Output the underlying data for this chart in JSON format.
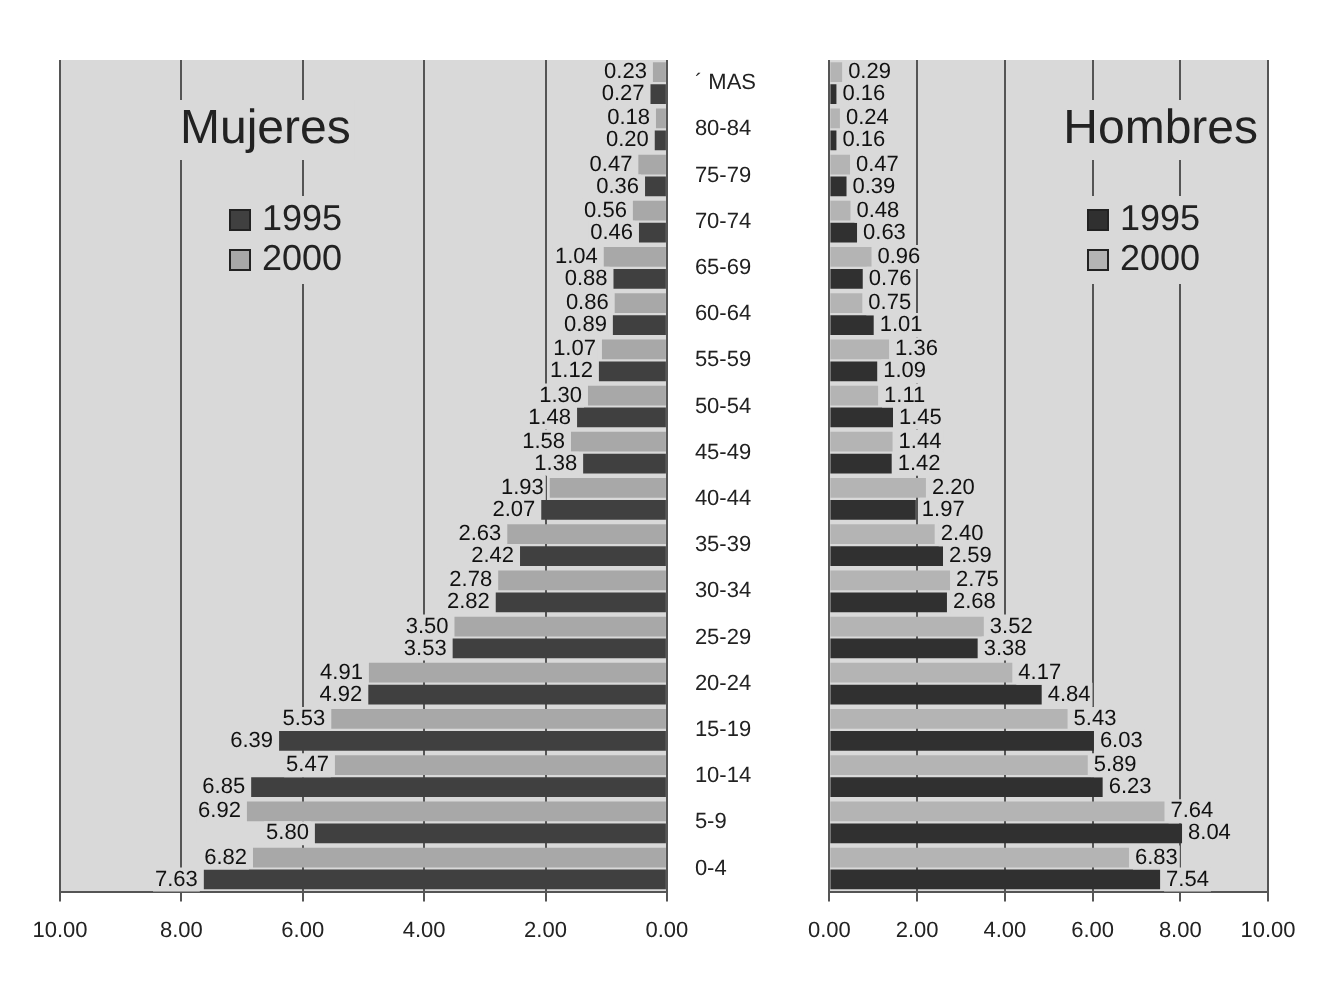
{
  "chart_data": [
    {
      "type": "bar",
      "orientation": "horizontal",
      "title": "Mujeres",
      "categories": [
        "´ MAS",
        "80-84",
        "75-79",
        "70-74",
        "65-69",
        "60-64",
        "55-59",
        "50-54",
        "45-49",
        "40-44",
        "35-39",
        "30-34",
        "25-29",
        "20-24",
        "15-19",
        "10-14",
        "5-9",
        "0-4"
      ],
      "series": [
        {
          "name": "2000",
          "color": "#a8a8a8",
          "values": [
            0.23,
            0.18,
            0.47,
            0.56,
            1.04,
            0.86,
            1.07,
            1.3,
            1.58,
            1.93,
            2.63,
            2.78,
            3.5,
            4.91,
            5.53,
            5.47,
            6.92,
            6.82
          ],
          "value_labels": [
            "0.23",
            "0.18",
            "0.47",
            "0.56",
            "1.04",
            "0.86",
            "1.07",
            "1.30",
            "1.58",
            "1.93",
            "2.63",
            "2.78",
            "3.50",
            "4.91",
            "5.53",
            "5.47",
            "6.92",
            "6.82"
          ]
        },
        {
          "name": "1995",
          "color": "#404040",
          "values": [
            0.27,
            0.2,
            0.36,
            0.46,
            0.88,
            0.89,
            1.12,
            1.48,
            1.38,
            2.07,
            2.42,
            2.82,
            3.53,
            4.92,
            6.39,
            6.85,
            5.8,
            7.63
          ],
          "value_labels": [
            "0.27",
            "0.20",
            "0.36",
            "0.46",
            "0.88",
            "0.89",
            "1.12",
            "1.48",
            "1.38",
            "2.07",
            "2.42",
            "2.82",
            "3.53",
            "4.92",
            "6.39",
            "6.85",
            "5.80",
            "7.63"
          ]
        }
      ],
      "xlim": [
        10,
        0
      ],
      "xticks": [
        {
          "value": 10,
          "label": "10.00"
        },
        {
          "value": 8,
          "label": "8.00"
        },
        {
          "value": 6,
          "label": "6.00"
        },
        {
          "value": 4,
          "label": "4.00"
        },
        {
          "value": 2,
          "label": "2.00"
        },
        {
          "value": 0,
          "label": "0.00"
        }
      ],
      "grid": "x",
      "legend": "top left"
    },
    {
      "type": "bar",
      "orientation": "horizontal",
      "title": "Hombres",
      "categories": [
        null,
        null,
        null,
        null,
        null,
        null,
        null,
        null,
        null,
        null,
        null,
        null,
        null,
        null,
        null,
        null,
        null,
        null
      ],
      "series": [
        {
          "name": "2000",
          "color": "#b4b4b4",
          "values": [
            0.29,
            0.24,
            0.47,
            0.48,
            0.96,
            0.75,
            1.36,
            1.11,
            1.44,
            2.2,
            2.4,
            2.75,
            3.52,
            4.17,
            5.43,
            5.89,
            7.64,
            6.83
          ],
          "value_labels": [
            "0.29",
            "0.24",
            "0.47",
            "0.48",
            "0.96",
            "0.75",
            "1.36",
            "1.11",
            "1.44",
            "2.20",
            "2.40",
            "2.75",
            "3.52",
            "4.17",
            "5.43",
            "5.89",
            "7.64",
            "6.83"
          ]
        },
        {
          "name": "1995",
          "color": "#303030",
          "values": [
            0.16,
            0.16,
            0.39,
            0.63,
            0.76,
            1.01,
            1.09,
            1.45,
            1.42,
            1.97,
            2.59,
            2.68,
            3.38,
            4.84,
            6.03,
            6.23,
            8.04,
            7.54
          ],
          "value_labels": [
            "0.16",
            "0.16",
            "0.39",
            "0.63",
            "0.76",
            "1.01",
            "1.09",
            "1.45",
            "1.42",
            "1.97",
            "2.59",
            "2.68",
            "3.38",
            "4.84",
            "6.03",
            "6.23",
            "8.04",
            "7.54"
          ]
        }
      ],
      "xlim": [
        0,
        10
      ],
      "xticks": [
        {
          "value": 0,
          "label": "0.00"
        },
        {
          "value": 2,
          "label": "2.00"
        },
        {
          "value": 4,
          "label": "4.00"
        },
        {
          "value": 6,
          "label": "6.00"
        },
        {
          "value": 8,
          "label": "8.00"
        },
        {
          "value": 10,
          "label": "10.00"
        }
      ],
      "grid": "x",
      "legend": "top right",
      "tick_labels": "x"
    }
  ]
}
